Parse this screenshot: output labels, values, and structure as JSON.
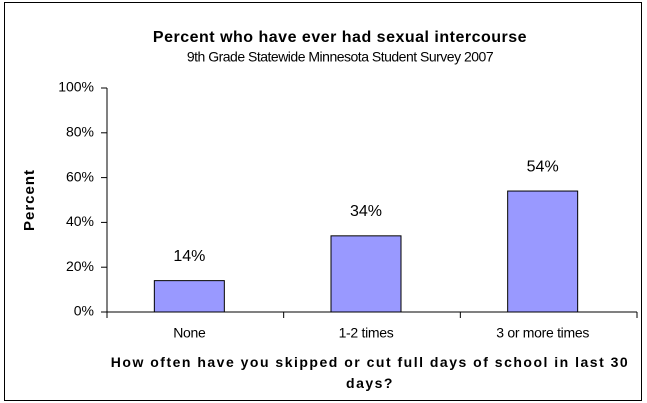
{
  "chart_data": {
    "type": "bar",
    "title": "Percent who have ever had sexual intercourse",
    "subtitle": "9th Grade Statewide Minnesota Student Survey 2007",
    "y_label": "Percent",
    "x_label": "How often have you skipped or cut full days of school in last 30 days?",
    "categories": [
      "None",
      "1-2 times",
      "3 or more times"
    ],
    "values": [
      14,
      34,
      54
    ],
    "value_labels": [
      "14%",
      "34%",
      "54%"
    ],
    "color": "#9999ff",
    "ylim": [
      0,
      100
    ],
    "yticks": [
      {
        "value": 0,
        "label": "0%"
      },
      {
        "value": 20,
        "label": "20%"
      },
      {
        "value": 40,
        "label": "40%"
      },
      {
        "value": 60,
        "label": "60%"
      },
      {
        "value": 80,
        "label": "80%"
      },
      {
        "value": 100,
        "label": "100%"
      }
    ],
    "grid": false
  }
}
